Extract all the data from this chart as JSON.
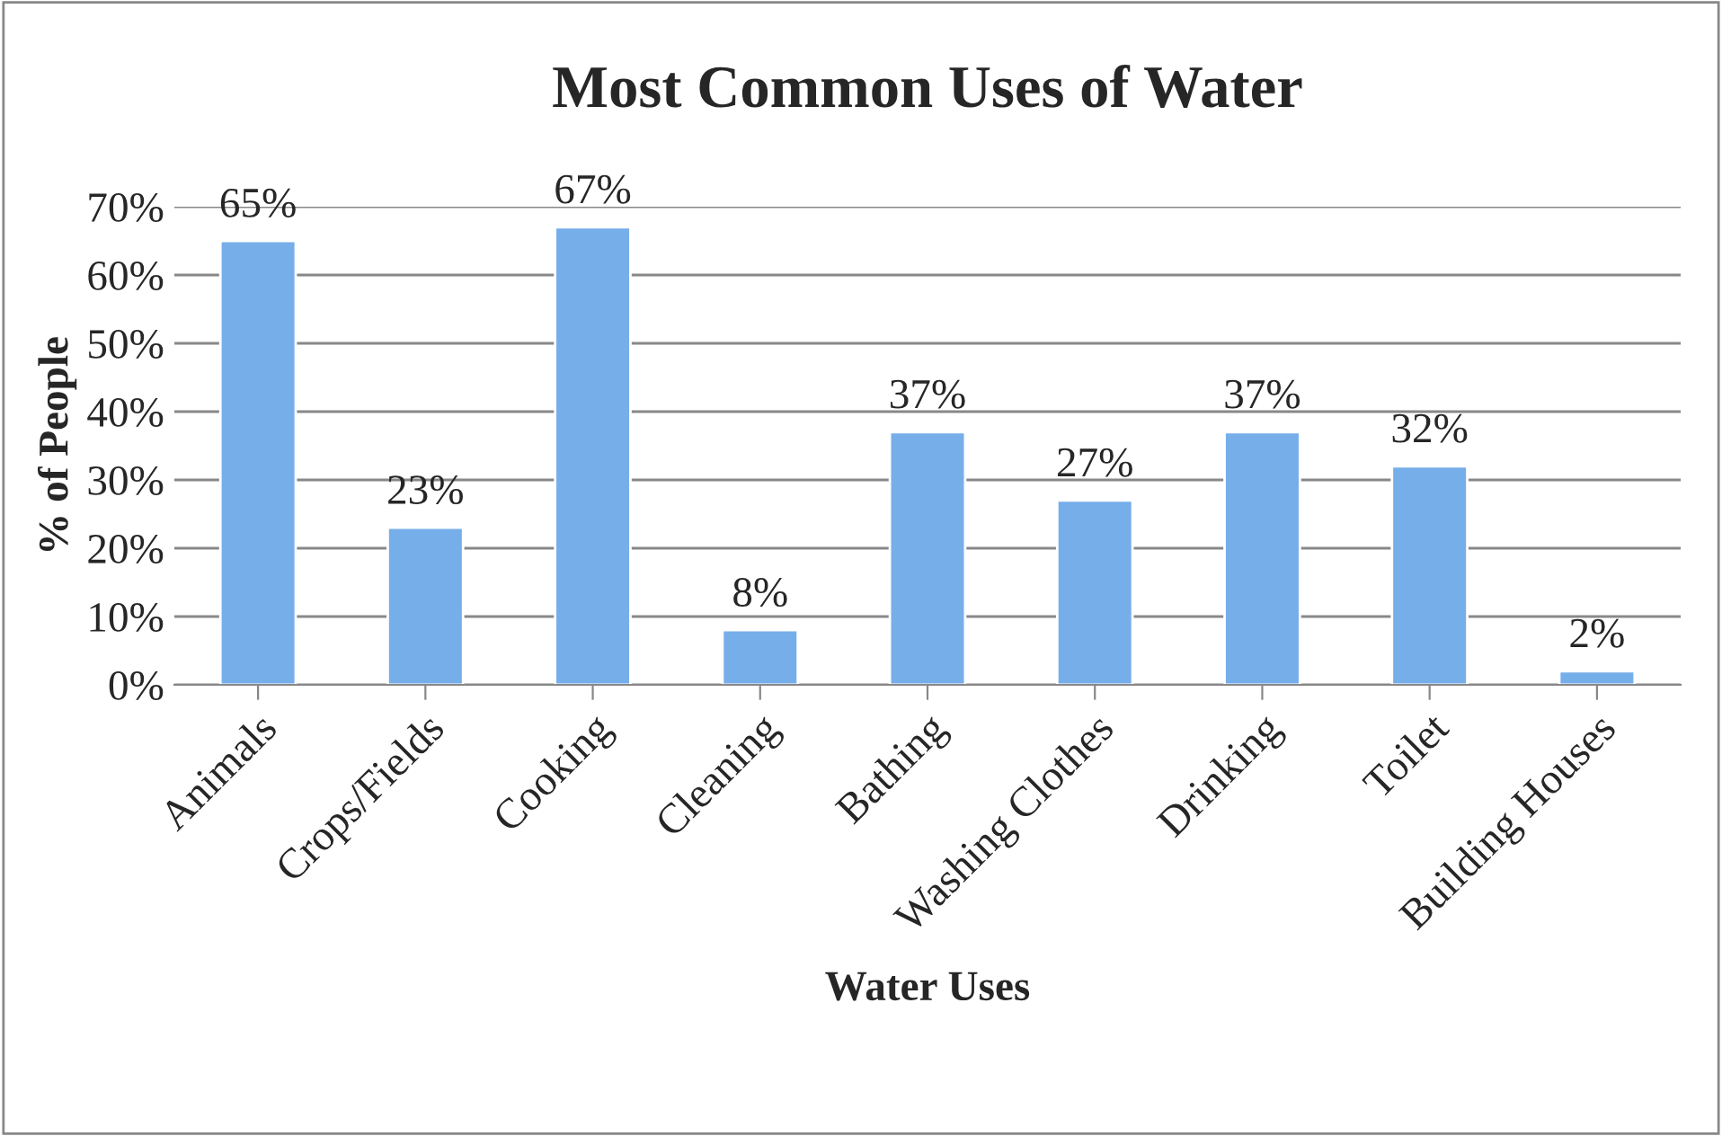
{
  "chart_data": {
    "type": "bar",
    "title": "Most Common Uses of Water",
    "xlabel": "Water Uses",
    "ylabel": "% of People",
    "categories": [
      "Animals",
      "Crops/Fields",
      "Cooking",
      "Cleaning",
      "Bathing",
      "Washing Clothes",
      "Drinking",
      "Toilet",
      "Building Houses"
    ],
    "values": [
      65,
      23,
      67,
      8,
      37,
      27,
      37,
      32,
      2
    ],
    "value_labels": [
      "65%",
      "23%",
      "67%",
      "8%",
      "37%",
      "27%",
      "37%",
      "32%",
      "2%"
    ],
    "color": "#76aeea",
    "ylim": [
      0,
      70
    ],
    "yticks": [
      {
        "value": 0,
        "label": "0%"
      },
      {
        "value": 10,
        "label": "10%"
      },
      {
        "value": 20,
        "label": "20%"
      },
      {
        "value": 30,
        "label": "30%"
      },
      {
        "value": 40,
        "label": "40%"
      },
      {
        "value": 50,
        "label": "50%"
      },
      {
        "value": 60,
        "label": "60%"
      },
      {
        "value": 70,
        "label": "70%"
      }
    ],
    "grid": "y",
    "legend": false
  }
}
